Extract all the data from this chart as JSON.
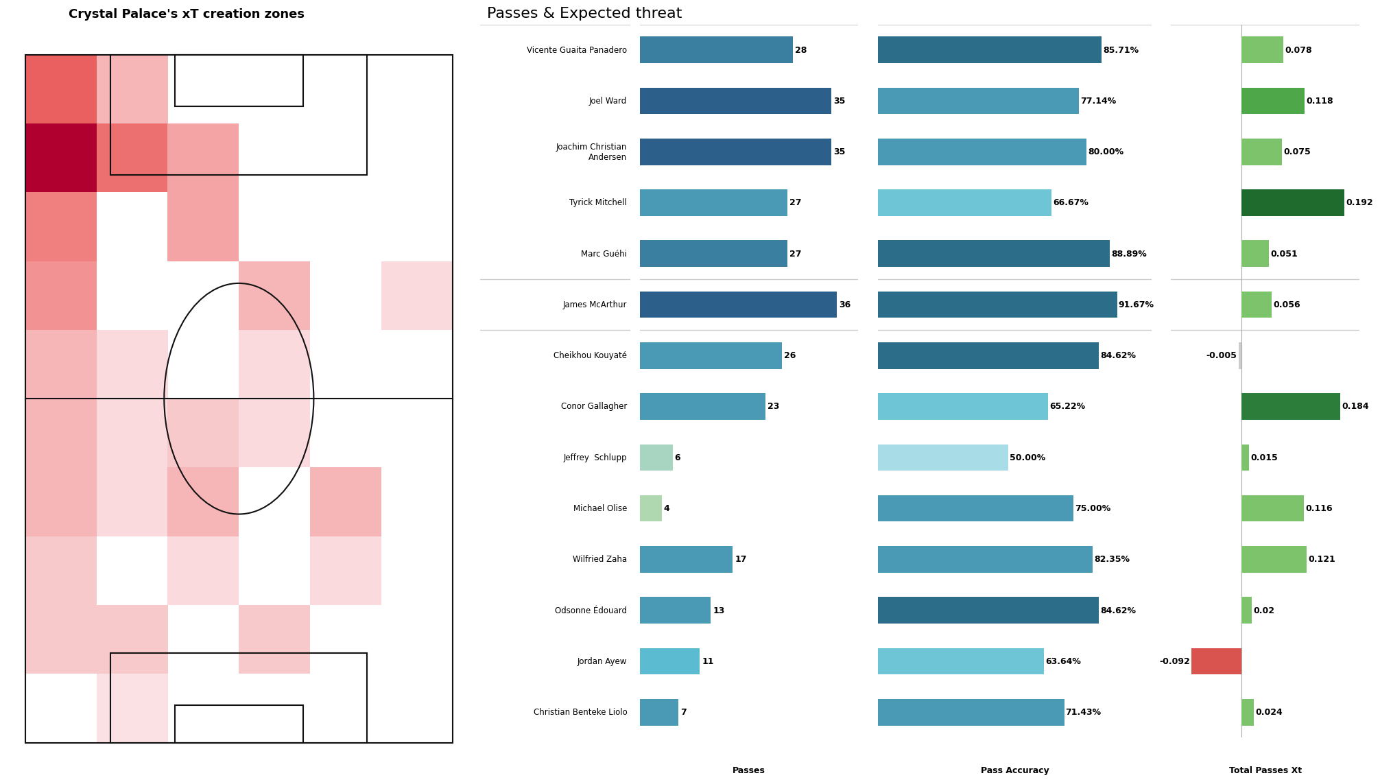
{
  "title_heatmap": "Crystal Palace's xT creation zones",
  "title_bar": "Passes & Expected threat",
  "players": [
    "Vicente Guaita Panadero",
    "Joel Ward",
    "Joachim Christian\nAndersen",
    "Tyrick Mitchell",
    "Marc Guéhi",
    "James McArthur",
    "Cheikhou Kouyaté",
    "Conor Gallagher",
    "Jeffrey  Schlupp",
    "Michael Olise",
    "Wilfried Zaha",
    "Odsonne Édouard",
    "Jordan Ayew",
    "Christian Benteke Liolo"
  ],
  "passes": [
    28,
    35,
    35,
    27,
    27,
    36,
    26,
    23,
    6,
    4,
    17,
    13,
    11,
    7
  ],
  "pass_accuracy": [
    85.71,
    77.14,
    80.0,
    66.67,
    88.89,
    91.67,
    84.62,
    65.22,
    50.0,
    75.0,
    82.35,
    84.62,
    63.64,
    71.43
  ],
  "total_passes_xt": [
    0.078,
    0.118,
    0.075,
    0.192,
    0.051,
    0.056,
    -0.005,
    0.184,
    0.015,
    0.116,
    0.121,
    0.02,
    -0.092,
    0.024
  ],
  "passes_colors": [
    "#3a7fa0",
    "#2c5f8a",
    "#2c5f8a",
    "#4a9ab5",
    "#3a7fa0",
    "#2c5f8a",
    "#4a9ab5",
    "#4a9ab5",
    "#a8d5c2",
    "#b0d8b0",
    "#4a9ab5",
    "#4a9ab5",
    "#5bbbd0",
    "#4a9ab5"
  ],
  "accuracy_colors": [
    "#2c6e8a",
    "#4a9ab5",
    "#4a9ab5",
    "#6ec5d5",
    "#2c6e8a",
    "#2c6e8a",
    "#2c6e8a",
    "#6ec5d5",
    "#a8dde8",
    "#4a9ab5",
    "#4a9ab5",
    "#2c6e8a",
    "#6ec5d5",
    "#4a9ab5"
  ],
  "xt_colors": [
    "#7dc36b",
    "#4ea84a",
    "#7dc36b",
    "#1f6b2e",
    "#7dc36b",
    "#7dc36b",
    "#cccccc",
    "#2d7d3a",
    "#7dc36b",
    "#7dc36b",
    "#7dc36b",
    "#7dc36b",
    "#d9534f",
    "#7dc36b"
  ],
  "bg_color": "#ffffff",
  "pitch_line_color": "#111111",
  "heat": [
    [
      0.6,
      0.35,
      0.0,
      0.0,
      0.0,
      0.0
    ],
    [
      1.0,
      0.55,
      0.4,
      0.0,
      0.0,
      0.0
    ],
    [
      0.5,
      0.0,
      0.4,
      0.0,
      0.0,
      0.0
    ],
    [
      0.45,
      0.0,
      0.0,
      0.35,
      0.0,
      0.25
    ],
    [
      0.35,
      0.25,
      0.0,
      0.25,
      0.0,
      0.0
    ],
    [
      0.35,
      0.25,
      0.3,
      0.25,
      0.0,
      0.0
    ],
    [
      0.35,
      0.25,
      0.35,
      0.0,
      0.35,
      0.0
    ],
    [
      0.3,
      0.0,
      0.25,
      0.0,
      0.25,
      0.0
    ],
    [
      0.3,
      0.3,
      0.0,
      0.3,
      0.0,
      0.0
    ],
    [
      0.0,
      0.2,
      0.0,
      0.0,
      0.0,
      0.0
    ]
  ]
}
